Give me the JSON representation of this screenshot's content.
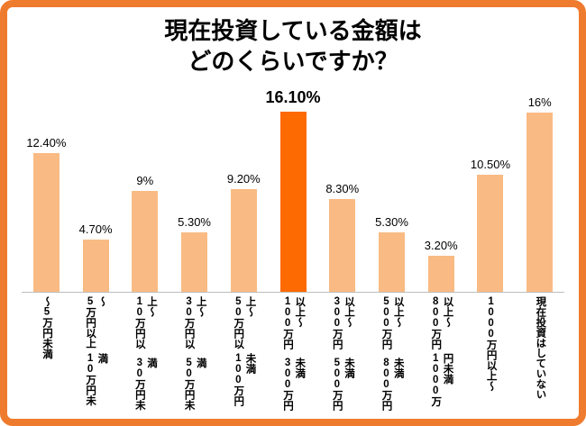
{
  "title": {
    "line1": "現在投資している金額は",
    "line2": "どのくらいですか？"
  },
  "colors": {
    "border": "#EF7B2E",
    "bar": "#F9BB83",
    "bar_highlight": "#FD6A02",
    "background": "#FFFFFF",
    "text": "#000000",
    "axis_line": "#BDBDBD"
  },
  "chart_data": {
    "type": "bar",
    "title": "現在投資している金額はどのくらいですか？",
    "xlabel": "",
    "ylabel": "",
    "ylim": [
      0,
      16.1
    ],
    "grid": false,
    "legend": false,
    "highlight_index": 5,
    "bars": [
      {
        "label_lines": [
          "～5万円未満"
        ],
        "value": 12.4,
        "value_label": "12.40%"
      },
      {
        "label_lines": [
          "5万円以上～",
          "10万円未満"
        ],
        "value": 4.7,
        "value_label": "4.70%"
      },
      {
        "label_lines": [
          "10万円以上～",
          "30万円未満"
        ],
        "value": 9,
        "value_label": "9%"
      },
      {
        "label_lines": [
          "30万円以上～",
          "50万円未満"
        ],
        "value": 5.3,
        "value_label": "5.30%"
      },
      {
        "label_lines": [
          "50万円以上～",
          "100万円未満"
        ],
        "value": 9.2,
        "value_label": "9.20%"
      },
      {
        "label_lines": [
          "100万円以上～",
          "300万円未満"
        ],
        "value": 16.1,
        "value_label": "16.10%"
      },
      {
        "label_lines": [
          "300万円以上～",
          "500万円未満"
        ],
        "value": 8.3,
        "value_label": "8.30%"
      },
      {
        "label_lines": [
          "500万円以上～",
          "800万円未満"
        ],
        "value": 5.3,
        "value_label": "5.30%"
      },
      {
        "label_lines": [
          "800万円以上～",
          "1000万円未満"
        ],
        "value": 3.2,
        "value_label": "3.20%"
      },
      {
        "label_lines": [
          "1000万円以上～"
        ],
        "value": 10.5,
        "value_label": "10.50%"
      },
      {
        "label_lines": [
          "現在投資は",
          "していない"
        ],
        "value": 16,
        "value_label": "16%"
      }
    ]
  }
}
